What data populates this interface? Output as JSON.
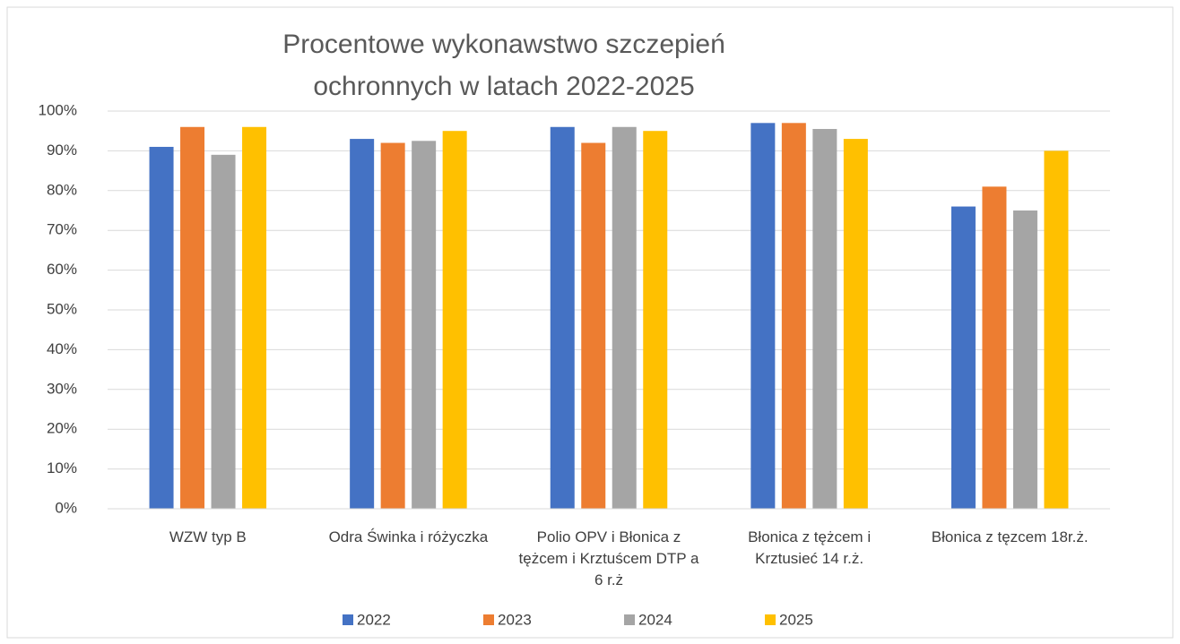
{
  "chart_data": {
    "type": "bar",
    "title": "Procentowe wykonawstwo szczepień ochronnych w latach 2022-2025",
    "categories": [
      "WZW typ B",
      "Odra Świnka i różyczka",
      "Polio OPV i Błonica z tężcem i Krztuścem DTP a 6 r.ż",
      "Błonica z tężcem i Krztusieć  14 r.ż.",
      "Błonica z tęzcem 18r.ż."
    ],
    "series": [
      {
        "name": "2022",
        "color": "#4472c4",
        "values": [
          91,
          93,
          96,
          97,
          76
        ]
      },
      {
        "name": "2023",
        "color": "#ed7d31",
        "values": [
          96,
          92,
          92,
          97,
          81
        ]
      },
      {
        "name": "2024",
        "color": "#a5a5a5",
        "values": [
          89,
          92.5,
          96,
          95.5,
          75
        ]
      },
      {
        "name": "2025",
        "color": "#ffc000",
        "values": [
          96,
          95,
          95,
          93,
          90
        ]
      }
    ],
    "ylim": [
      0,
      100
    ],
    "yticks": [
      {
        "value": 0,
        "label": "0%"
      },
      {
        "value": 10,
        "label": "10%"
      },
      {
        "value": 20,
        "label": "20%"
      },
      {
        "value": 30,
        "label": "30%"
      },
      {
        "value": 40,
        "label": "40%"
      },
      {
        "value": 50,
        "label": "50%"
      },
      {
        "value": 60,
        "label": "60%"
      },
      {
        "value": 70,
        "label": "70%"
      },
      {
        "value": 80,
        "label": "80%"
      },
      {
        "value": 90,
        "label": "90%"
      },
      {
        "value": 100,
        "label": "100%"
      }
    ],
    "grid": true,
    "legend": "bottom"
  }
}
